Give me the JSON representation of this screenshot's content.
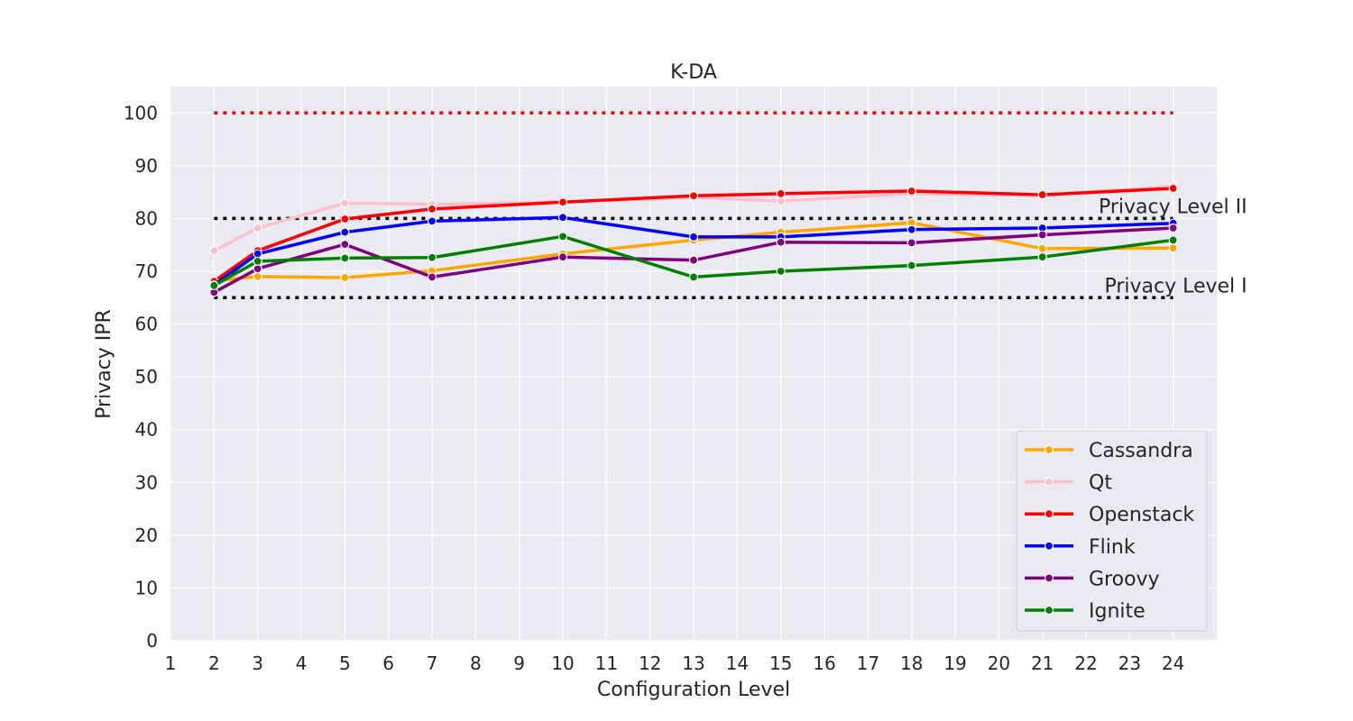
{
  "chart_data": {
    "type": "line",
    "title": "K-DA",
    "xlabel": "Configuration Level",
    "ylabel": "Privacy IPR",
    "xlim": [
      1,
      25
    ],
    "ylim": [
      0,
      105
    ],
    "x_ticks": [
      1,
      2,
      3,
      4,
      5,
      6,
      7,
      8,
      9,
      10,
      11,
      12,
      13,
      14,
      15,
      16,
      17,
      18,
      19,
      20,
      21,
      22,
      23,
      24
    ],
    "y_ticks": [
      0,
      10,
      20,
      30,
      40,
      50,
      60,
      70,
      80,
      90,
      100
    ],
    "grid": true,
    "legend_position": "lower-right",
    "x": [
      2,
      3,
      5,
      7,
      10,
      13,
      15,
      18,
      21,
      24
    ],
    "series": [
      {
        "name": "Cassandra",
        "color": "#FFA500",
        "values": [
          68.2,
          69.0,
          68.8,
          70.1,
          73.3,
          75.9,
          77.4,
          79.2,
          74.3,
          74.4
        ]
      },
      {
        "name": "Qt",
        "color": "#FFC0CB",
        "values": [
          73.9,
          78.2,
          82.9,
          82.7,
          83.1,
          84.0,
          83.3,
          84.7,
          84.4,
          86.1
        ]
      },
      {
        "name": "Openstack",
        "color": "#FF0000",
        "values": [
          68.1,
          73.9,
          79.9,
          81.8,
          83.1,
          84.3,
          84.7,
          85.2,
          84.5,
          85.7
        ]
      },
      {
        "name": "Flink",
        "color": "#0000FF",
        "values": [
          67.4,
          73.3,
          77.4,
          79.5,
          80.2,
          76.5,
          76.5,
          77.9,
          78.2,
          79.1
        ]
      },
      {
        "name": "Groovy",
        "color": "#800080",
        "values": [
          66.0,
          70.5,
          75.1,
          68.9,
          72.7,
          72.1,
          75.5,
          75.4,
          76.9,
          78.2
        ]
      },
      {
        "name": "Ignite",
        "color": "#008000",
        "values": [
          67.3,
          71.9,
          72.5,
          72.6,
          76.6,
          68.9,
          70.0,
          71.1,
          72.7,
          75.9
        ]
      }
    ],
    "reference_lines": [
      {
        "y": 100,
        "color": "#FF0000",
        "label": ""
      },
      {
        "y": 80,
        "color": "#000000",
        "label": "Privacy Level II"
      },
      {
        "y": 65,
        "color": "#000000",
        "label": "Privacy Level I"
      }
    ]
  }
}
